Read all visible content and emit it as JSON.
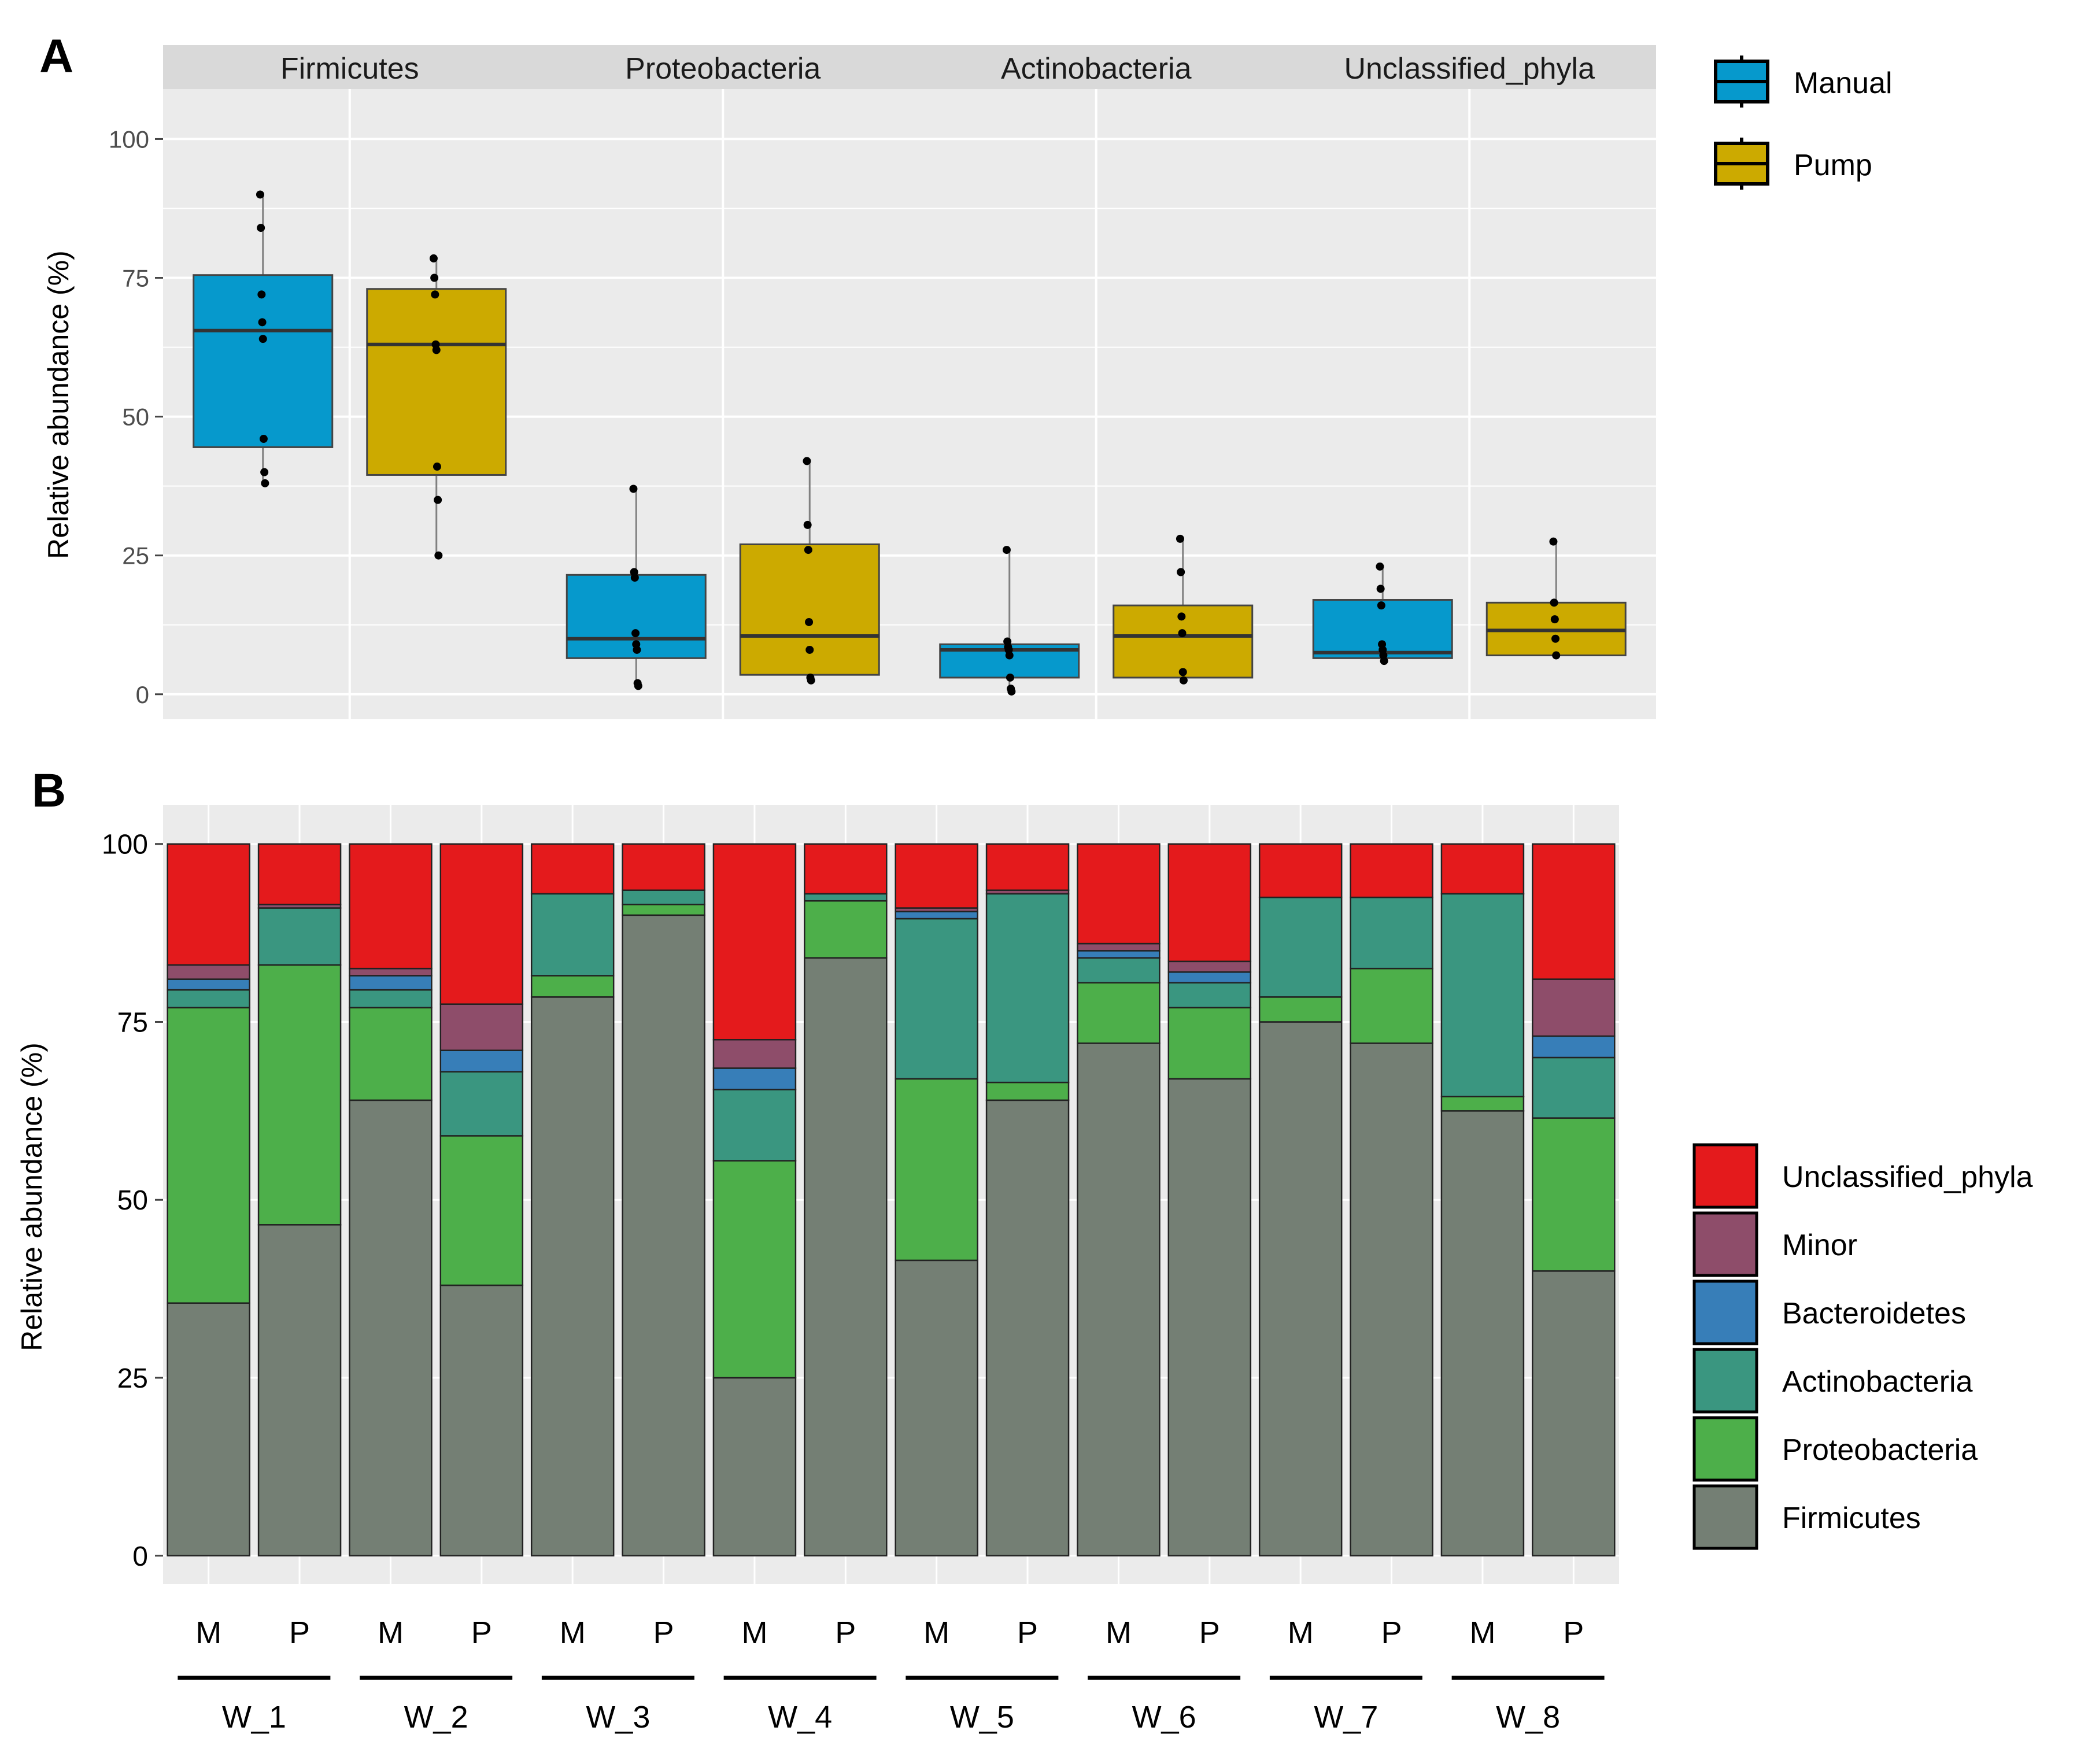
{
  "colors": {
    "manual": "#0699CC",
    "pump": "#CCAA00",
    "panel_bg": "#EBEBEB",
    "strip_bg": "#D9D9D9",
    "grid": "#FFFFFF",
    "Unclassified_phyla": "#E41A1C",
    "Minor": "#8E4D6A",
    "Bacteroidetes": "#377EB8",
    "Actinobacteria": "#3A9680",
    "Proteobacteria": "#4DAF4A",
    "Firmicutes": "#747F74"
  },
  "chart_data": [
    {
      "type": "box",
      "panel_label": "A",
      "ylabel": "Relative abundance (%)",
      "ylim": [
        -4.5,
        109
      ],
      "yticks": [
        "0",
        "25",
        "50",
        "75",
        "100"
      ],
      "facets": [
        "Firmicutes",
        "Proteobacteria",
        "Actinobacteria",
        "Unclassified_phyla"
      ],
      "legend": [
        "Manual",
        "Pump"
      ],
      "boxes": [
        {
          "facet": "Firmicutes",
          "group": "Manual",
          "min": 38,
          "q1": 44.5,
          "median": 65.5,
          "q3": 75.5,
          "max": 90,
          "points": [
            90,
            84,
            72,
            67,
            64,
            46,
            40,
            38
          ]
        },
        {
          "facet": "Firmicutes",
          "group": "Pump",
          "min": 25,
          "q1": 39.5,
          "median": 63,
          "q3": 73,
          "max": 78.5,
          "points": [
            78.5,
            75,
            72,
            63,
            62,
            41,
            35,
            25
          ]
        },
        {
          "facet": "Proteobacteria",
          "group": "Manual",
          "min": 1.5,
          "q1": 6.5,
          "median": 10,
          "q3": 21.5,
          "max": 37,
          "points": [
            37,
            22,
            21,
            11,
            9,
            8,
            2,
            1.5
          ]
        },
        {
          "facet": "Proteobacteria",
          "group": "Pump",
          "min": 2.5,
          "q1": 3.5,
          "median": 10.5,
          "q3": 27,
          "max": 42,
          "points": [
            42,
            30.5,
            26,
            13,
            8,
            3,
            2.5
          ]
        },
        {
          "facet": "Actinobacteria",
          "group": "Manual",
          "min": 0.5,
          "q1": 3,
          "median": 8,
          "q3": 9,
          "max": 26,
          "points": [
            26,
            9.5,
            8.5,
            8,
            7,
            3,
            1,
            0.5
          ]
        },
        {
          "facet": "Actinobacteria",
          "group": "Pump",
          "min": 2.5,
          "q1": 3,
          "median": 10.5,
          "q3": 16,
          "max": 28,
          "points": [
            28,
            22,
            14,
            11,
            4,
            2.5
          ]
        },
        {
          "facet": "Unclassified_phyla",
          "group": "Manual",
          "min": 6,
          "q1": 6.5,
          "median": 7.5,
          "q3": 17,
          "max": 23,
          "points": [
            23,
            19,
            16,
            9,
            8,
            7,
            6
          ]
        },
        {
          "facet": "Unclassified_phyla",
          "group": "Pump",
          "min": 7,
          "q1": 7,
          "median": 11.5,
          "q3": 16.5,
          "max": 27.5,
          "points": [
            27.5,
            16.5,
            13.5,
            10,
            7
          ]
        }
      ]
    },
    {
      "type": "stacked_bar",
      "panel_label": "B",
      "ylabel": "Relative abundance (%)",
      "ylim": [
        -4,
        105.5
      ],
      "yticks": [
        "0",
        "25",
        "50",
        "75",
        "100"
      ],
      "bar_labels": [
        "M",
        "P",
        "M",
        "P",
        "M",
        "P",
        "M",
        "P",
        "M",
        "P",
        "M",
        "P",
        "M",
        "P",
        "M",
        "P"
      ],
      "groups": [
        "W_1",
        "W_2",
        "W_3",
        "W_4",
        "W_5",
        "W_6",
        "W_7",
        "W_8"
      ],
      "legend": [
        "Unclassified_phyla",
        "Minor",
        "Bacteroidetes",
        "Actinobacteria",
        "Proteobacteria",
        "Firmicutes"
      ],
      "stack_order": [
        "Firmicutes",
        "Proteobacteria",
        "Actinobacteria",
        "Bacteroidetes",
        "Minor",
        "Unclassified_phyla"
      ],
      "bars": [
        {
          "group": "W_1",
          "label": "M",
          "values": [
            35.5,
            41.5,
            2.5,
            1.5,
            2,
            17
          ]
        },
        {
          "group": "W_1",
          "label": "P",
          "values": [
            46.5,
            36.5,
            8,
            0,
            0.5,
            8.5
          ]
        },
        {
          "group": "W_2",
          "label": "M",
          "values": [
            64,
            13,
            2.5,
            2,
            1,
            17.5
          ]
        },
        {
          "group": "W_2",
          "label": "P",
          "values": [
            38,
            21,
            9,
            3,
            6.5,
            22.5
          ]
        },
        {
          "group": "W_3",
          "label": "M",
          "values": [
            78.5,
            3,
            11.5,
            0,
            0,
            7
          ]
        },
        {
          "group": "W_3",
          "label": "P",
          "values": [
            90,
            1.5,
            2,
            0,
            0,
            6.5
          ]
        },
        {
          "group": "W_4",
          "label": "M",
          "values": [
            25,
            30.5,
            10,
            3,
            4,
            27.5
          ]
        },
        {
          "group": "W_4",
          "label": "P",
          "values": [
            84,
            8,
            1,
            0,
            0,
            7
          ]
        },
        {
          "group": "W_5",
          "label": "M",
          "values": [
            41.5,
            25.5,
            22.5,
            1,
            0.5,
            9
          ]
        },
        {
          "group": "W_5",
          "label": "P",
          "values": [
            64,
            2.5,
            26.5,
            0,
            0.5,
            6.5
          ]
        },
        {
          "group": "W_6",
          "label": "M",
          "values": [
            72,
            8.5,
            3.5,
            1,
            1,
            14
          ]
        },
        {
          "group": "W_6",
          "label": "P",
          "values": [
            67,
            10,
            3.5,
            1.5,
            1.5,
            16.5
          ]
        },
        {
          "group": "W_7",
          "label": "M",
          "values": [
            75,
            3.5,
            14,
            0,
            0,
            7.5
          ]
        },
        {
          "group": "W_7",
          "label": "P",
          "values": [
            72,
            10.5,
            10,
            0,
            0,
            7.5
          ]
        },
        {
          "group": "W_8",
          "label": "M",
          "values": [
            62.5,
            2,
            28.5,
            0,
            0,
            7
          ]
        },
        {
          "group": "W_8",
          "label": "P",
          "values": [
            40,
            21.5,
            8.5,
            3,
            8,
            19
          ]
        }
      ]
    }
  ]
}
